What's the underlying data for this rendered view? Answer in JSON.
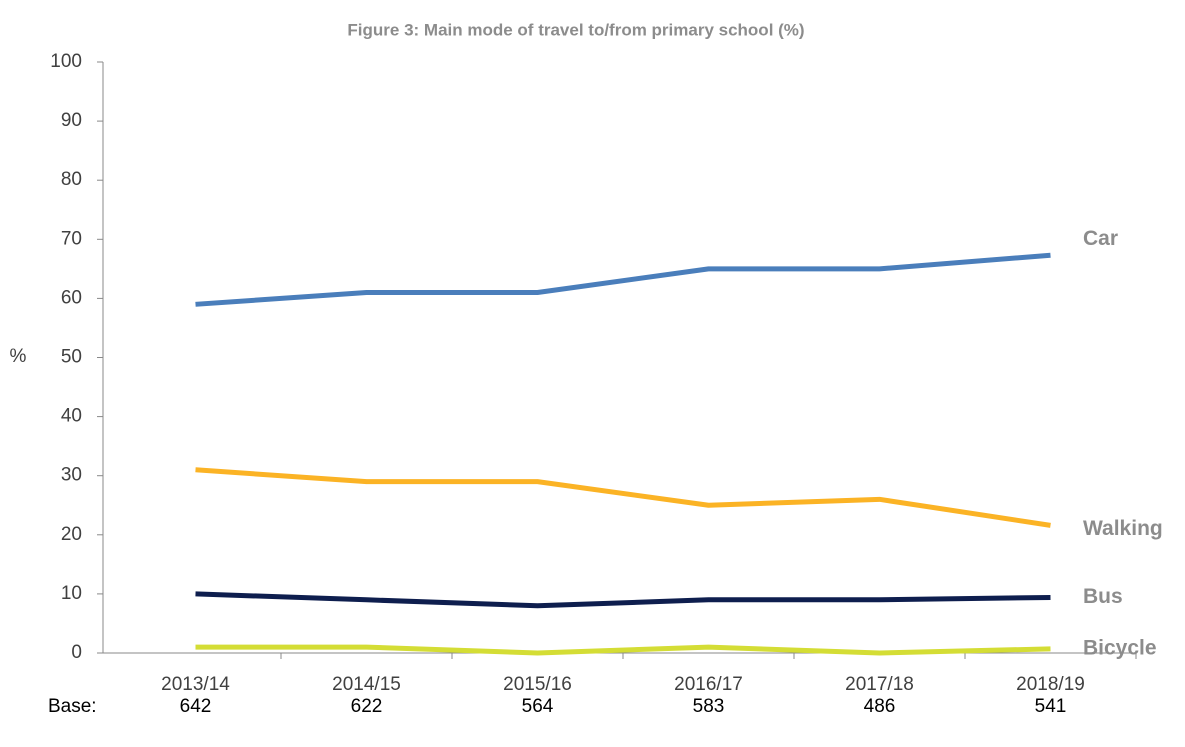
{
  "chart_data": {
    "type": "line",
    "title": "Figure 3: Main mode of travel to/from primary school (%)",
    "y_label": "%",
    "categories": [
      "2013/14",
      "2014/15",
      "2015/16",
      "2016/17",
      "2017/18",
      "2018/19"
    ],
    "series": [
      {
        "name": "Car",
        "color": "#4a7ebb",
        "values": [
          59,
          61,
          61,
          65,
          65,
          67.3
        ]
      },
      {
        "name": "Walking",
        "color": "#fbb325",
        "values": [
          31,
          29,
          29,
          25,
          26,
          21.6
        ]
      },
      {
        "name": "Bus",
        "color": "#0e1e4e",
        "values": [
          10,
          9,
          8,
          9,
          9,
          9.4
        ]
      },
      {
        "name": "Bicycle",
        "color": "#d4dd35",
        "values": [
          1,
          1,
          0,
          1,
          0,
          0.7
        ]
      }
    ],
    "ylim": [
      0,
      100
    ],
    "yticks": [
      0,
      10,
      20,
      30,
      40,
      50,
      60,
      70,
      80,
      90,
      100
    ],
    "base": {
      "label": "Base:",
      "values": [
        "642",
        "622",
        "564",
        "583",
        "486",
        "541"
      ]
    }
  }
}
